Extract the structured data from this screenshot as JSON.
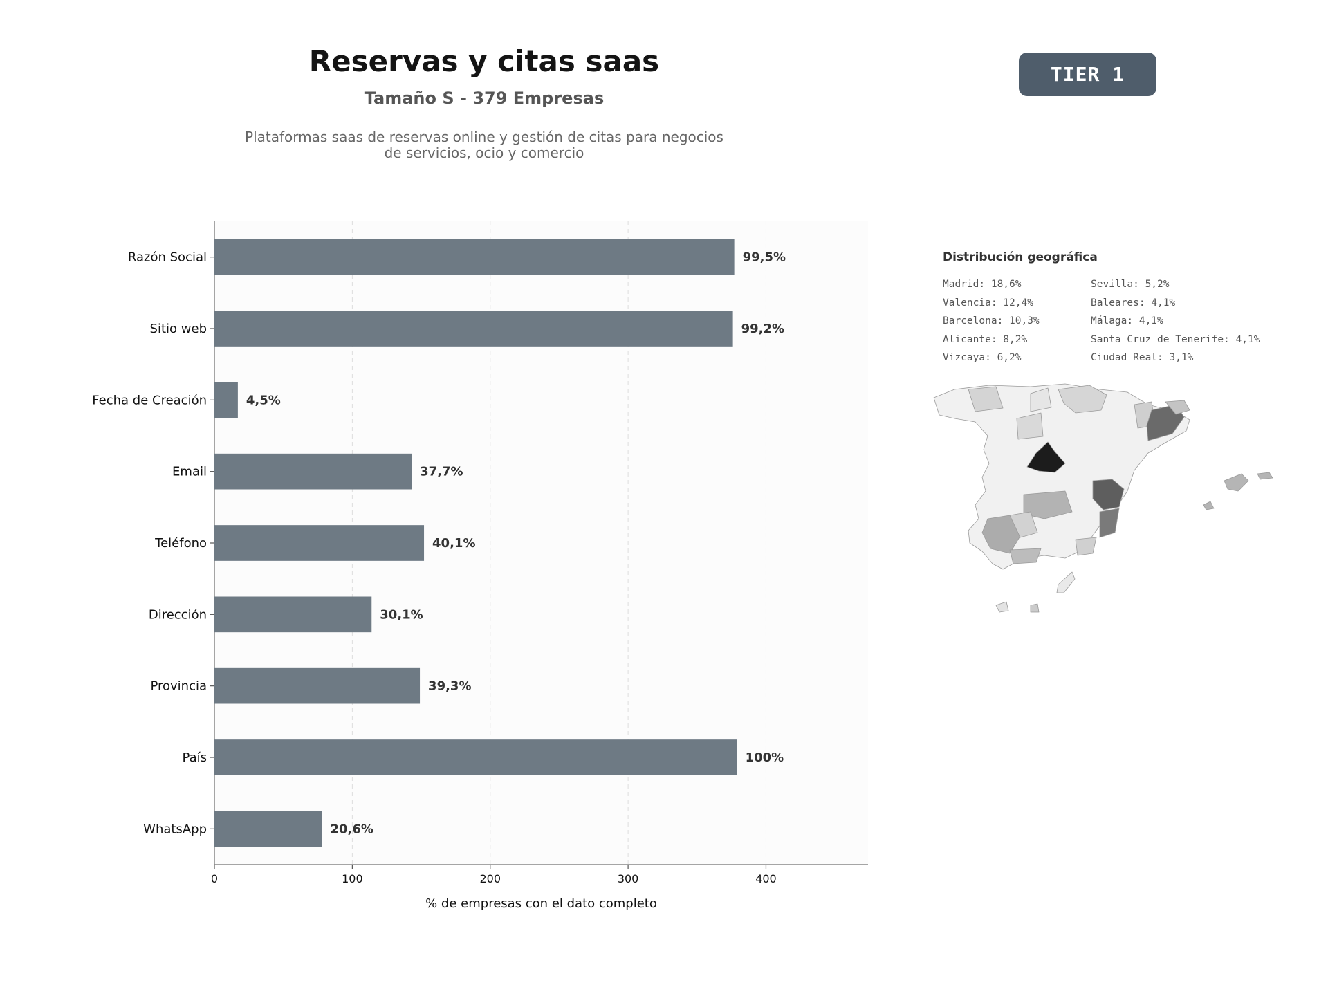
{
  "header": {
    "title": "Reservas y citas saas",
    "subtitle": "Tamaño S - 379 Empresas",
    "description_line1": "Plataformas saas de reservas online y gestión de citas para negocios",
    "description_line2": "de servicios, ocio y comercio"
  },
  "badge": {
    "label": "TIER 1",
    "color": "#4f5d6b"
  },
  "chart_data": {
    "type": "bar",
    "orientation": "horizontal",
    "categories": [
      "Razón Social",
      "Sitio web",
      "Fecha de Creación",
      "Email",
      "Teléfono",
      "Dirección",
      "Provincia",
      "País",
      "WhatsApp"
    ],
    "values": [
      377,
      376,
      17,
      143,
      152,
      114,
      149,
      379,
      78
    ],
    "data_labels": [
      "99,5%",
      "99,2%",
      "4,5%",
      "37,7%",
      "40,1%",
      "30,1%",
      "39,3%",
      "100%",
      "20,6%"
    ],
    "xlabel": "% de empresas con el dato completo",
    "ylabel": "",
    "xlim": [
      0,
      474
    ],
    "xticks": [
      0,
      100,
      200,
      300,
      400
    ],
    "grid": true,
    "bar_color": "#6e7a84"
  },
  "geo": {
    "title": "Distribución geográfica",
    "col1": [
      "Madrid: 18,6%",
      "Valencia: 12,4%",
      "Barcelona: 10,3%",
      "Alicante: 8,2%",
      "Vizcaya: 6,2%"
    ],
    "col2": [
      "Sevilla: 5,2%",
      "Baleares: 4,1%",
      "Málaga: 4,1%",
      "Santa Cruz de Tenerife: 4,1%",
      "Ciudad Real: 3,1%"
    ]
  }
}
